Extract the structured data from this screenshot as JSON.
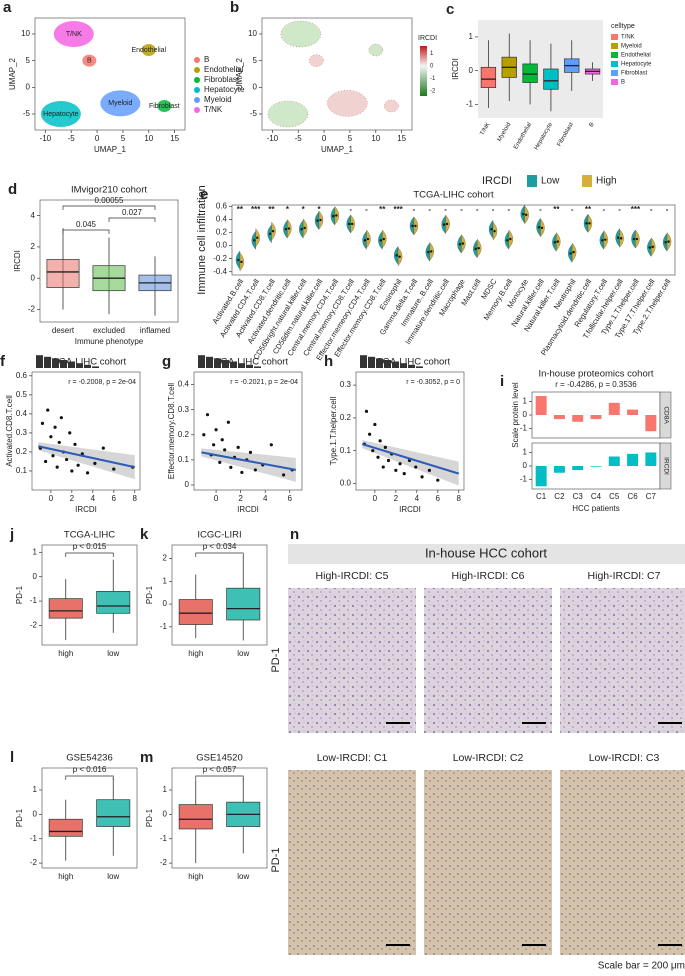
{
  "chart_data": [
    {
      "panel": "a",
      "type": "umap",
      "xlabel": "UMAP_1",
      "ylabel": "UMAP_2",
      "xlim": [
        -12,
        17
      ],
      "ylim": [
        -8,
        13
      ],
      "xticks": [
        -10,
        -5,
        0,
        5,
        10,
        15
      ],
      "yticks": [
        -5,
        0,
        5,
        10
      ],
      "series": [
        {
          "name": "B",
          "color": "#F8766D",
          "x": -1.5,
          "y": 5
        },
        {
          "name": "Endothelial",
          "color": "#B79F00",
          "x": 10,
          "y": 7
        },
        {
          "name": "Fibroblast",
          "color": "#00BA38",
          "x": 13,
          "y": -3.5
        },
        {
          "name": "Hepatocyte",
          "color": "#00BFC4",
          "x": -7,
          "y": -5
        },
        {
          "name": "Myeloid",
          "color": "#619CFF",
          "x": 4.5,
          "y": -3
        },
        {
          "name": "T/NK",
          "color": "#F564E3",
          "x": -4.5,
          "y": 10
        }
      ]
    },
    {
      "panel": "b",
      "type": "umap_score",
      "xlabel": "UMAP_1",
      "ylabel": "UMAP_2",
      "xlim": [
        -12,
        17
      ],
      "ylim": [
        -8,
        13
      ],
      "xticks": [
        -10,
        -5,
        0,
        5,
        10,
        15
      ],
      "yticks": [
        -5,
        0,
        5,
        10
      ],
      "clusters": [
        {
          "x": -1.5,
          "y": 5
        },
        {
          "x": 10,
          "y": 7
        },
        {
          "x": 13,
          "y": -3.5
        },
        {
          "x": -7,
          "y": -5
        },
        {
          "x": 4.5,
          "y": -3
        },
        {
          "x": -4.5,
          "y": 10
        }
      ],
      "colorbar": {
        "label": "IRCDI",
        "lim": [
          -2.4,
          1.6
        ],
        "ticks": [
          1,
          0,
          -1,
          -2
        ]
      }
    },
    {
      "panel": "c",
      "type": "box",
      "ylabel": "IRCDI",
      "ylim": [
        -1.4,
        1.5
      ],
      "yticks": [
        -1,
        0,
        1
      ],
      "legend_title": "celltype",
      "categories": [
        "T/NK",
        "Myeloid",
        "Endothelial",
        "Hepatocyte",
        "Fibroblast",
        "B"
      ],
      "colors": [
        "#F8766D",
        "#B79F00",
        "#00BA38",
        "#00BFC4",
        "#619CFF",
        "#F564E3"
      ],
      "stats": [
        [
          -1.1,
          -0.5,
          -0.25,
          0.1,
          0.9
        ],
        [
          -0.9,
          -0.2,
          0.1,
          0.4,
          1.1
        ],
        [
          -1.0,
          -0.35,
          -0.1,
          0.2,
          0.9
        ],
        [
          -1.2,
          -0.55,
          -0.3,
          0.05,
          0.8
        ],
        [
          -0.6,
          -0.05,
          0.15,
          0.35,
          0.9
        ],
        [
          -0.3,
          -0.1,
          -0.02,
          0.05,
          0.25
        ]
      ]
    },
    {
      "panel": "d",
      "type": "box",
      "title": "IMvigor210 cohort",
      "ylabel": "IRCDI",
      "xlabel": "Immune phenotype",
      "ylim": [
        -2.8,
        5
      ],
      "yticks": [
        -2,
        0,
        2,
        4
      ],
      "categories": [
        "desert",
        "excluded",
        "inflamed"
      ],
      "colors": [
        "#E8716A",
        "#5DBB4B",
        "#5B8BD6"
      ],
      "stats": [
        [
          -2,
          -0.6,
          0.4,
          1.2,
          3.2
        ],
        [
          -2.3,
          -0.8,
          0,
          0.8,
          2.6
        ],
        [
          -2.4,
          -0.8,
          -0.3,
          0.2,
          1.4
        ]
      ],
      "pvalues": [
        "0.045",
        "0.027",
        "0.00055"
      ]
    },
    {
      "panel": "e",
      "type": "split_violin",
      "title": "TCGA-LIHC cohort",
      "ylabel": "Immune cell infiltration",
      "legend_title": "IRCDI",
      "ylim": [
        -0.45,
        0.62
      ],
      "yticks": [
        -0.4,
        -0.2,
        {
          "value": 0,
          "label": "0.0"
        },
        0.2,
        0.4,
        0.6
      ],
      "categories": [
        "Activated.B.cell",
        "Activated.CD4.T.cell",
        "Activated.CD8.T.cell",
        "Activated.dendritic.cell",
        "CD56bright.natural.killer.cell",
        "CD56dim.natural.killer.cell",
        "Central.memory.CD4.T.cell",
        "Central.memory.CD8.T.cell",
        "Effector.memeory.CD4.T.cell",
        "Effector.memory.CD8.T.cell",
        "Eosinophil",
        "Gamma.delta.T.cell",
        "Immature..B.cell",
        "Immature.dendritic.cell",
        "Macrophage",
        "Mast.cell",
        "MDSC",
        "Memory.B.cell",
        "Monocyte",
        "Natural.killer.cell",
        "Natural.killer.T.cell",
        "Neutrophil",
        "Plasmacytoid.dendritic.cell",
        "Regulatory.T.cell",
        "T.follicular.helper.cell",
        "Type.1.T.helper.cell",
        "Type.17.T.helper.cell",
        "Type.2.T.helper.cell"
      ],
      "significance": [
        "**",
        "***",
        "**",
        "*",
        "*",
        "*",
        "-",
        "-",
        "-",
        "**",
        "***",
        "-",
        "-",
        "-",
        "-",
        "-",
        "-",
        "-",
        "-",
        "-",
        "**",
        "-",
        "**",
        "-",
        "-",
        "***",
        "-",
        "-"
      ],
      "series": [
        {
          "name": "Low",
          "color": "#1B9E9E",
          "values": [
            -0.22,
            0.08,
            0.18,
            0.25,
            0.25,
            0.38,
            0.45,
            0.33,
            0.08,
            0.08,
            -0.15,
            0.3,
            -0.1,
            0.32,
            0.02,
            -0.05,
            0.25,
            0.08,
            0.48,
            0.28,
            0.05,
            -0.12,
            0.34,
            0.08,
            0.12,
            0.1,
            -0.03,
            0.05
          ]
        },
        {
          "name": "High",
          "color": "#D4B03A",
          "values": [
            -0.25,
            0.12,
            0.22,
            0.26,
            0.27,
            0.39,
            0.46,
            0.33,
            0.1,
            0.1,
            -0.17,
            0.3,
            -0.09,
            0.33,
            0.03,
            -0.04,
            0.22,
            0.1,
            0.47,
            0.27,
            0.06,
            -0.1,
            0.34,
            0.09,
            0.11,
            0.1,
            -0.02,
            0.06
          ]
        }
      ]
    },
    {
      "panel": "f",
      "type": "scatter",
      "title": "TCGA-LIHC cohort",
      "annotation": "r = -0.2008, p = 2e-04",
      "xlabel": "IRCDI",
      "ylabel": "Activated.CD8.T.cell",
      "xlim": [
        -1.8,
        8.5
      ],
      "ylim": [
        0,
        0.62
      ],
      "xticks": [
        0,
        2,
        4,
        6,
        8
      ],
      "yticks": [
        0.1,
        0.2,
        0.3,
        0.4,
        0.5,
        0.6
      ],
      "x": [
        -1,
        -0.8,
        -0.5,
        -0.3,
        0,
        0.2,
        0.4,
        0.6,
        0.8,
        1,
        1.2,
        1.5,
        1.8,
        2,
        2.3,
        2.6,
        3,
        3.5,
        4.2,
        5,
        6,
        7.8
      ],
      "y": [
        0.22,
        0.35,
        0.15,
        0.42,
        0.28,
        0.18,
        0.33,
        0.12,
        0.25,
        0.38,
        0.2,
        0.16,
        0.3,
        0.1,
        0.24,
        0.13,
        0.19,
        0.09,
        0.14,
        0.22,
        0.11,
        0.12
      ],
      "fit": {
        "x": [
          -1.2,
          8
        ],
        "y": [
          0.23,
          0.12
        ]
      }
    },
    {
      "panel": "g",
      "type": "scatter",
      "title": "TCGA-LIHC cohort",
      "annotation": "r = -0.2021, p = 2e-04",
      "xlabel": "IRCDI",
      "ylabel": "Effector.memory.CD8.T.cell",
      "xlim": [
        -1.8,
        7
      ],
      "ylim": [
        -0.02,
        0.45
      ],
      "xticks": [
        0,
        2,
        4,
        6
      ],
      "yticks": [
        0,
        0.1,
        0.2,
        0.3,
        0.4
      ],
      "x": [
        -1,
        -0.7,
        -0.4,
        -0.2,
        0,
        0.3,
        0.5,
        0.7,
        1,
        1.2,
        1.5,
        1.8,
        2.1,
        2.5,
        2.8,
        3.2,
        3.8,
        4.5,
        5.5,
        6.2
      ],
      "y": [
        0.2,
        0.28,
        0.12,
        0.16,
        0.22,
        0.09,
        0.18,
        0.14,
        0.25,
        0.07,
        0.11,
        0.15,
        0.05,
        0.1,
        0.13,
        0.06,
        0.08,
        0.16,
        0.04,
        0.06
      ],
      "fit": {
        "x": [
          -1.2,
          6.5
        ],
        "y": [
          0.13,
          0.06
        ]
      }
    },
    {
      "panel": "h",
      "type": "scatter",
      "title": "TCGA-LIHC cohort",
      "annotation": "r = -0.3052, p = 0",
      "xlabel": "IRCDI",
      "ylabel": "Type.1.T.helper.cell",
      "xlim": [
        -1.8,
        8.5
      ],
      "ylim": [
        -0.02,
        0.34
      ],
      "xticks": [
        0,
        2,
        4,
        6,
        8
      ],
      "yticks": [
        {
          "value": 0,
          "label": "0.0"
        },
        0.1,
        0.2,
        0.3
      ],
      "x": [
        -1,
        -0.8,
        -0.5,
        -0.2,
        0,
        0.3,
        0.5,
        0.8,
        1,
        1.3,
        1.6,
        2,
        2.4,
        2.8,
        3.3,
        3.9,
        4.5,
        5.2,
        6
      ],
      "y": [
        0.12,
        0.22,
        0.15,
        0.1,
        0.18,
        0.08,
        0.13,
        0.05,
        0.11,
        0.07,
        0.09,
        0.04,
        0.06,
        0.03,
        0.07,
        0.05,
        0.02,
        0.04,
        0.01
      ],
      "fit": {
        "x": [
          -1.2,
          8
        ],
        "y": [
          0.12,
          0.03
        ]
      }
    },
    {
      "panel": "i",
      "type": "bar_facet",
      "title": "In-house proteomics cohort",
      "subtitle": "r = -0.4286, p = 0.3536",
      "xlabel": "HCC patients",
      "ylabel": "Scale protein level",
      "ylim": [
        -1.7,
        1.7
      ],
      "yticks": [
        -1,
        0,
        1
      ],
      "categories": [
        "C1",
        "C2",
        "C3",
        "C4",
        "C5",
        "C6",
        "C7"
      ],
      "series": [
        {
          "name": "CD8A",
          "color": "#F8766D",
          "values": [
            1.4,
            -0.3,
            -0.5,
            -0.3,
            0.9,
            0.4,
            -1.2
          ]
        },
        {
          "name": "IRCDI",
          "color": "#00BFC4",
          "values": [
            -1.5,
            -0.5,
            -0.3,
            -0.05,
            0.7,
            0.9,
            1.0
          ]
        }
      ]
    },
    {
      "panel": "j",
      "type": "box",
      "title": "TCGA-LIHC",
      "ylabel": "PD-1",
      "pvalue": "p < 0.015",
      "ylim": [
        -2.8,
        1.3
      ],
      "yticks": [
        -2,
        -1,
        0,
        1
      ],
      "categories": [
        "high",
        "low"
      ],
      "colors": [
        "#E8716A",
        "#3FC0B4"
      ],
      "stats": [
        [
          -2.6,
          -1.7,
          -1.4,
          -0.9,
          -0.1
        ],
        [
          -2.3,
          -1.5,
          -1.2,
          -0.6,
          0.7
        ]
      ]
    },
    {
      "panel": "k",
      "type": "box",
      "title": "ICGC-LIRI",
      "ylabel": "PD-1",
      "pvalue": "p < 0.034",
      "ylim": [
        -1.8,
        2.6
      ],
      "yticks": [
        -1,
        0,
        1,
        2
      ],
      "categories": [
        "high",
        "low"
      ],
      "colors": [
        "#E8716A",
        "#3FC0B4"
      ],
      "stats": [
        [
          -1.5,
          -0.9,
          -0.4,
          0.2,
          1.3
        ],
        [
          -1.6,
          -0.7,
          -0.2,
          0.7,
          2.1
        ]
      ]
    },
    {
      "panel": "l",
      "type": "box",
      "title": "GSE54236",
      "ylabel": "PD-1",
      "pvalue": "p < 0.016",
      "ylim": [
        -2.2,
        1.9
      ],
      "yticks": [
        -2,
        -1,
        0,
        1
      ],
      "categories": [
        "high",
        "low"
      ],
      "colors": [
        "#E8716A",
        "#3FC0B4"
      ],
      "stats": [
        [
          -1.9,
          -0.9,
          -0.7,
          -0.2,
          0.6
        ],
        [
          -1.7,
          -0.5,
          -0.1,
          0.6,
          1.5
        ]
      ]
    },
    {
      "panel": "m",
      "type": "box",
      "title": "GSE14520",
      "ylabel": "PD-1",
      "pvalue": "p < 0.057",
      "ylim": [
        -2.2,
        1.9
      ],
      "yticks": [
        -2,
        -1,
        0,
        1
      ],
      "categories": [
        "high",
        "low"
      ],
      "colors": [
        "#E8716A",
        "#3FC0B4"
      ],
      "stats": [
        [
          -2,
          -0.6,
          -0.2,
          0.4,
          1.4
        ],
        [
          -1.6,
          -0.5,
          0,
          0.5,
          1.5
        ]
      ]
    }
  ],
  "ihc": {
    "panel": "n",
    "title": "In-house HCC cohort",
    "row_label": "PD-1",
    "images": [
      {
        "caption": "High-IRCDI: C5"
      },
      {
        "caption": "High-IRCDI: C6"
      },
      {
        "caption": "High-IRCDI: C7"
      },
      {
        "caption": "Low-IRCDI: C1"
      },
      {
        "caption": "Low-IRCDI: C2"
      },
      {
        "caption": "Low-IRCDI: C3"
      }
    ],
    "scale_bar": "Scale bar = 200 μm"
  }
}
